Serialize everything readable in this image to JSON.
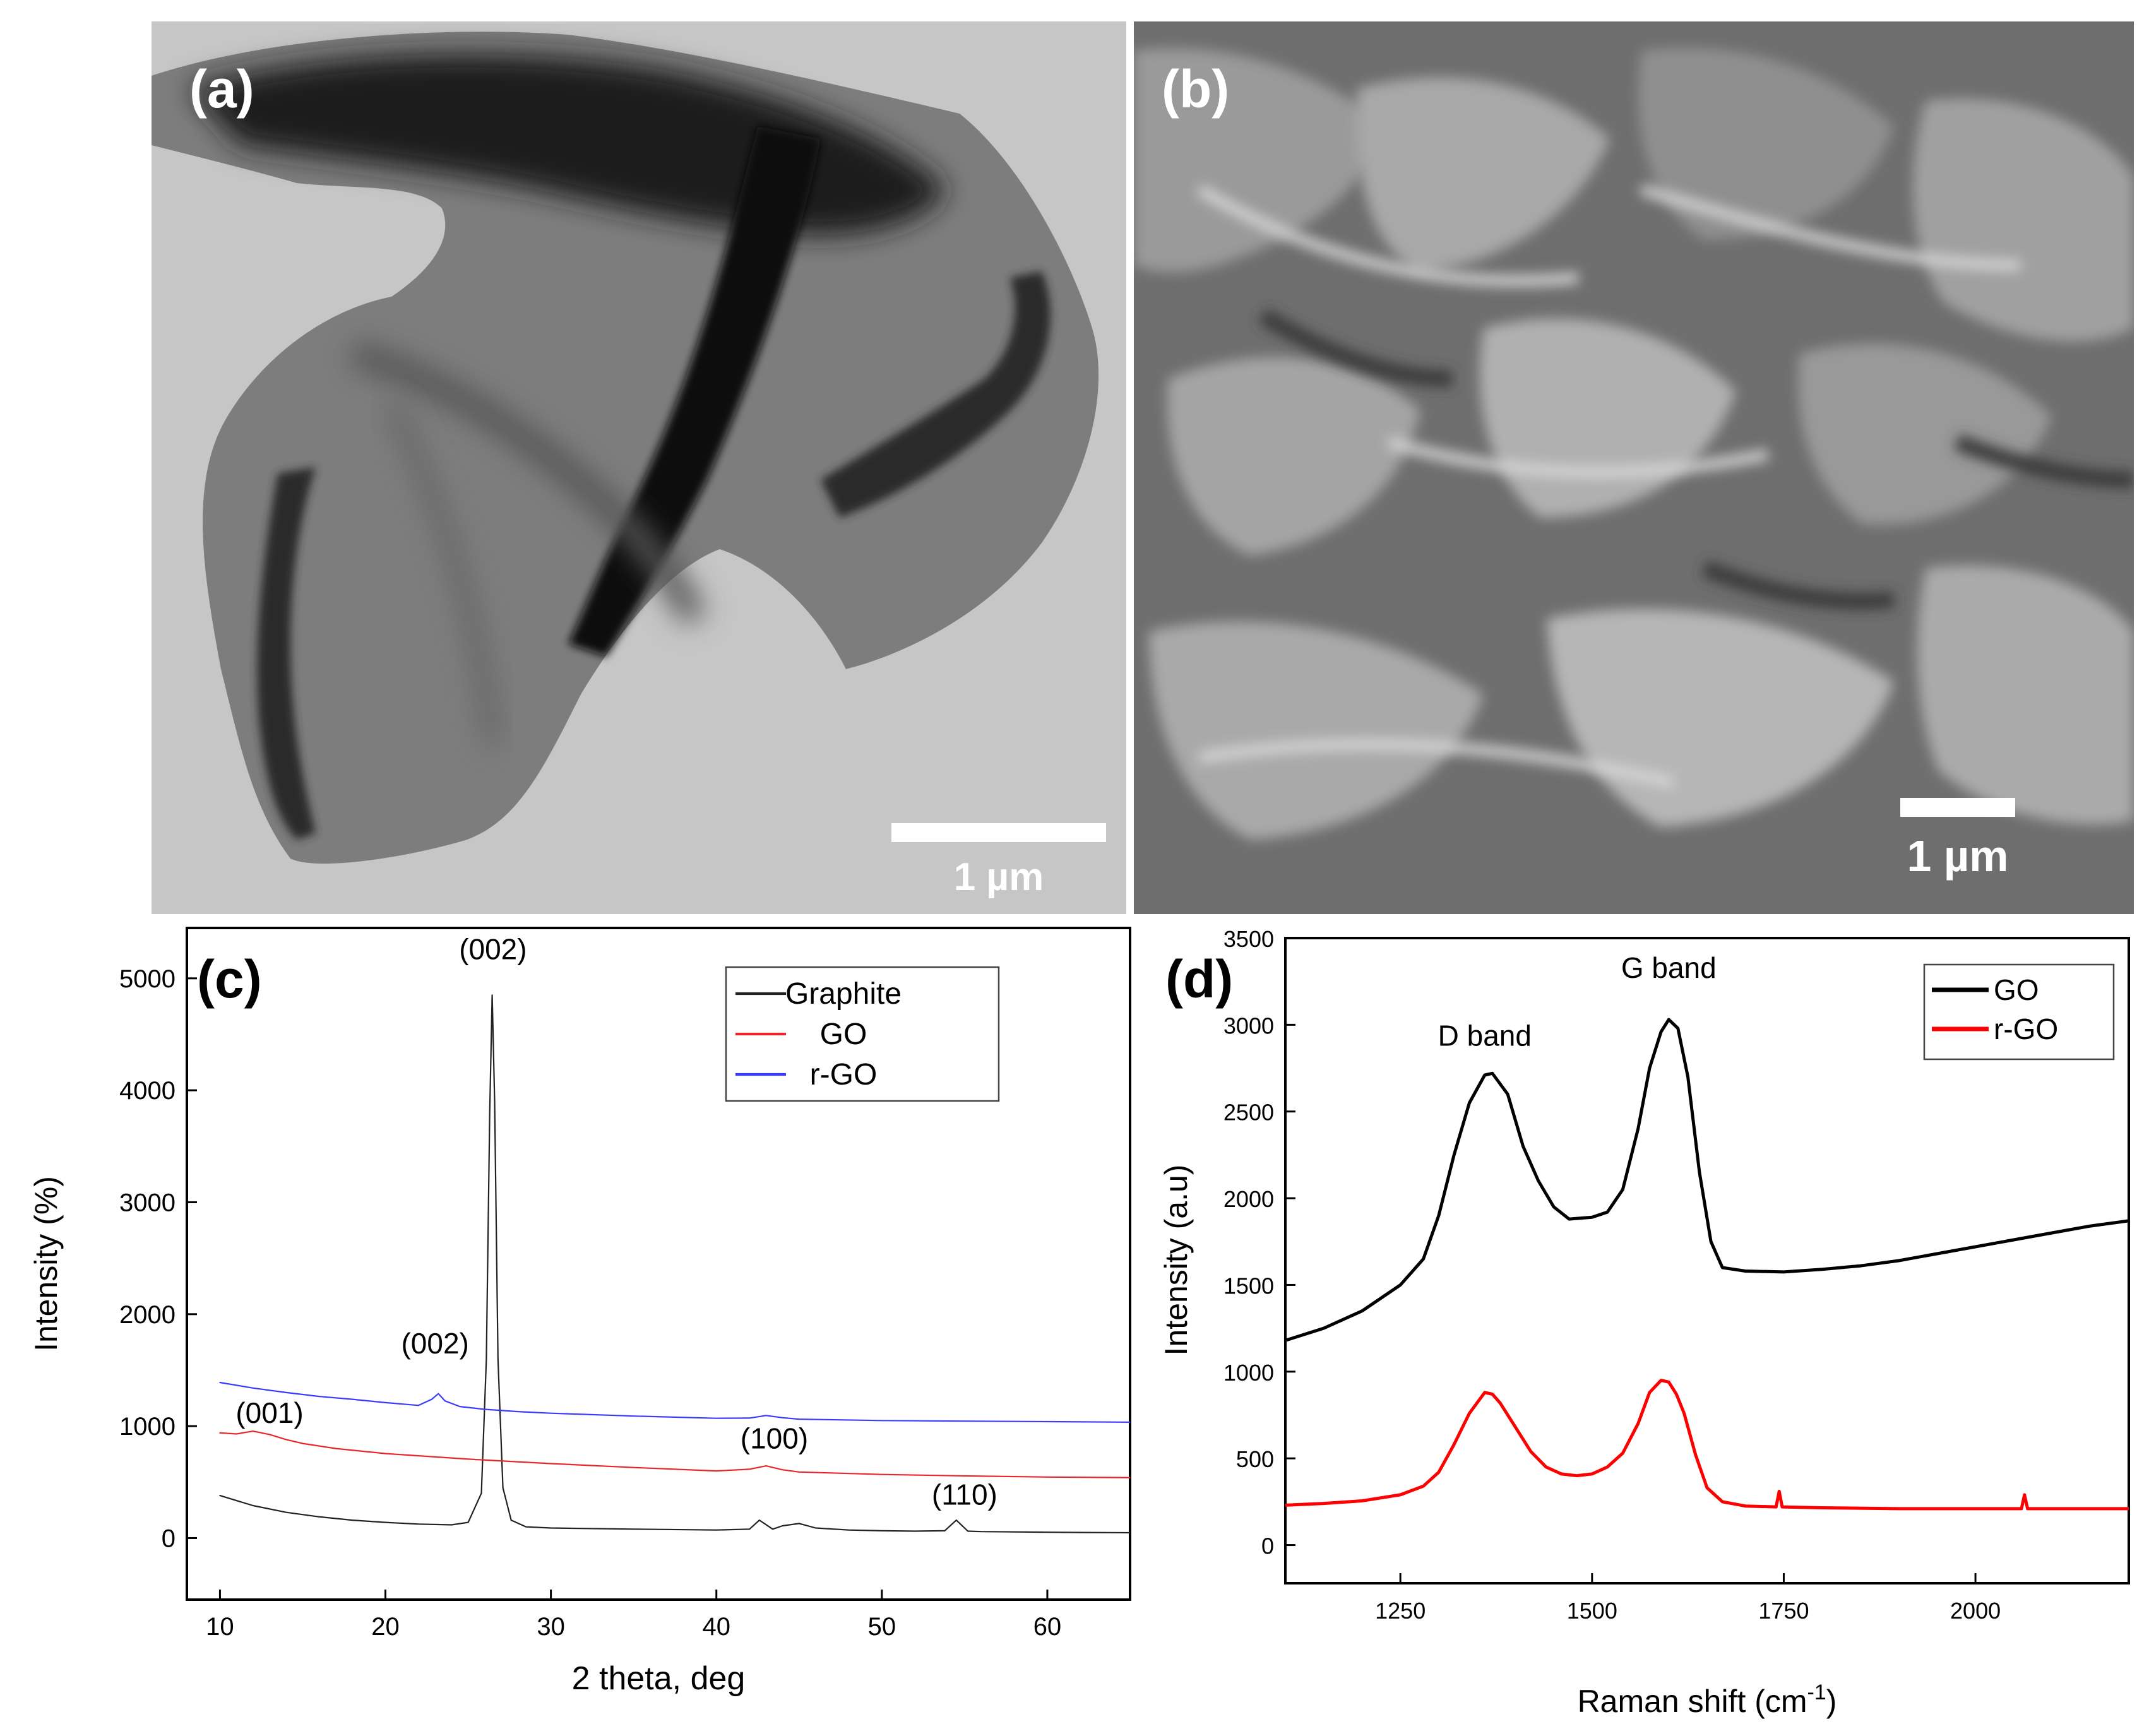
{
  "panels": {
    "a": {
      "label": "(a)",
      "scale_bar_text": "1 µm"
    },
    "b": {
      "label": "(b)",
      "scale_bar_text": "1 µm"
    }
  },
  "chart_data": [
    {
      "panel": "(c)",
      "type": "line",
      "title": "",
      "xlabel": "2 theta, deg",
      "ylabel": "Intensity (%)",
      "xlim": [
        8,
        65
      ],
      "ylim": [
        -550,
        5450
      ],
      "xticks": [
        10,
        20,
        30,
        40,
        50,
        60
      ],
      "yticks": [
        0,
        1000,
        2000,
        3000,
        4000,
        5000
      ],
      "grid": false,
      "legend": "top-right",
      "series": [
        {
          "name": "Graphite",
          "color": "#222222",
          "x": [
            10,
            12,
            14,
            16,
            18,
            20,
            22,
            24,
            25,
            25.8,
            26.1,
            26.3,
            26.45,
            26.6,
            26.8,
            27.1,
            27.6,
            28.5,
            30,
            35,
            40,
            42,
            42.6,
            43.4,
            44,
            45,
            46,
            48,
            50,
            52,
            53.8,
            54.5,
            55.2,
            56,
            58,
            60,
            62,
            65
          ],
          "values": [
            380,
            290,
            230,
            190,
            160,
            140,
            125,
            118,
            140,
            400,
            1600,
            3800,
            4850,
            3900,
            1600,
            450,
            160,
            100,
            90,
            80,
            72,
            80,
            160,
            80,
            110,
            130,
            90,
            72,
            65,
            62,
            65,
            160,
            62,
            58,
            55,
            52,
            50,
            48
          ]
        },
        {
          "name": "GO",
          "color": "#e8262b",
          "x": [
            10,
            11,
            12,
            13,
            14,
            15,
            17,
            20,
            25,
            30,
            35,
            40,
            42,
            43,
            44,
            45,
            50,
            55,
            60,
            65
          ],
          "values": [
            940,
            930,
            955,
            925,
            880,
            845,
            800,
            755,
            705,
            665,
            630,
            600,
            615,
            645,
            610,
            590,
            568,
            555,
            545,
            540
          ]
        },
        {
          "name": "r-GO",
          "color": "#3b3bff",
          "x": [
            10,
            12,
            14,
            16,
            18,
            20,
            22,
            22.8,
            23.2,
            23.6,
            24.5,
            26,
            28,
            30,
            35,
            40,
            42,
            43,
            44,
            45,
            50,
            55,
            60,
            65
          ],
          "values": [
            1390,
            1340,
            1300,
            1265,
            1240,
            1210,
            1185,
            1240,
            1290,
            1225,
            1175,
            1150,
            1130,
            1115,
            1090,
            1070,
            1072,
            1095,
            1075,
            1062,
            1050,
            1045,
            1040,
            1035
          ]
        }
      ],
      "annotations": [
        {
          "text": "(002)",
          "x": 26.5,
          "y": 5170
        },
        {
          "text": "(002)",
          "x": 23.0,
          "y": 1650
        },
        {
          "text": "(001)",
          "x": 13.0,
          "y": 1030
        },
        {
          "text": "(100)",
          "x": 43.5,
          "y": 800
        },
        {
          "text": "(110)",
          "x": 55.0,
          "y": 300
        }
      ]
    },
    {
      "panel": "(d)",
      "type": "line",
      "title": "",
      "xlabel": "Raman shift (cm",
      "xlabel_sup": "-1",
      "xlabel_end": ")",
      "ylabel": "Intensity (a.u)",
      "xlim": [
        1100,
        2200
      ],
      "ylim": [
        -220,
        3500
      ],
      "xticks": [
        1250,
        1500,
        1750,
        2000
      ],
      "yticks": [
        0,
        500,
        1000,
        1500,
        2000,
        2500,
        3000,
        3500
      ],
      "grid": false,
      "legend": "top-right",
      "series": [
        {
          "name": "GO",
          "color": "#000000",
          "x": [
            1100,
            1150,
            1200,
            1250,
            1280,
            1300,
            1320,
            1340,
            1360,
            1370,
            1390,
            1410,
            1430,
            1450,
            1470,
            1500,
            1520,
            1540,
            1560,
            1575,
            1590,
            1600,
            1612,
            1625,
            1640,
            1655,
            1670,
            1700,
            1750,
            1800,
            1850,
            1900,
            1950,
            2000,
            2050,
            2100,
            2150,
            2200
          ],
          "values": [
            1180,
            1250,
            1350,
            1500,
            1650,
            1900,
            2250,
            2550,
            2710,
            2720,
            2600,
            2300,
            2100,
            1950,
            1880,
            1890,
            1920,
            2050,
            2400,
            2750,
            2960,
            3030,
            2980,
            2700,
            2150,
            1750,
            1600,
            1580,
            1575,
            1590,
            1610,
            1640,
            1680,
            1720,
            1760,
            1800,
            1840,
            1870
          ]
        },
        {
          "name": "r-GO",
          "color": "#ff0000",
          "x": [
            1100,
            1150,
            1200,
            1250,
            1280,
            1300,
            1320,
            1340,
            1360,
            1370,
            1380,
            1400,
            1420,
            1440,
            1460,
            1480,
            1500,
            1520,
            1540,
            1560,
            1575,
            1590,
            1600,
            1610,
            1620,
            1635,
            1650,
            1670,
            1700,
            1740,
            1744,
            1748,
            1800,
            1900,
            2000,
            2060,
            2064,
            2068,
            2100,
            2150,
            2200
          ],
          "values": [
            230,
            240,
            255,
            290,
            340,
            420,
            580,
            760,
            880,
            870,
            820,
            680,
            540,
            450,
            410,
            400,
            410,
            450,
            530,
            700,
            880,
            950,
            940,
            870,
            760,
            520,
            330,
            250,
            225,
            220,
            310,
            220,
            215,
            210,
            210,
            210,
            290,
            210,
            210,
            210,
            210
          ]
        }
      ],
      "annotations": [
        {
          "text": "D band",
          "x": 1360,
          "y": 2880
        },
        {
          "text": "G band",
          "x": 1600,
          "y": 3270
        }
      ]
    }
  ]
}
